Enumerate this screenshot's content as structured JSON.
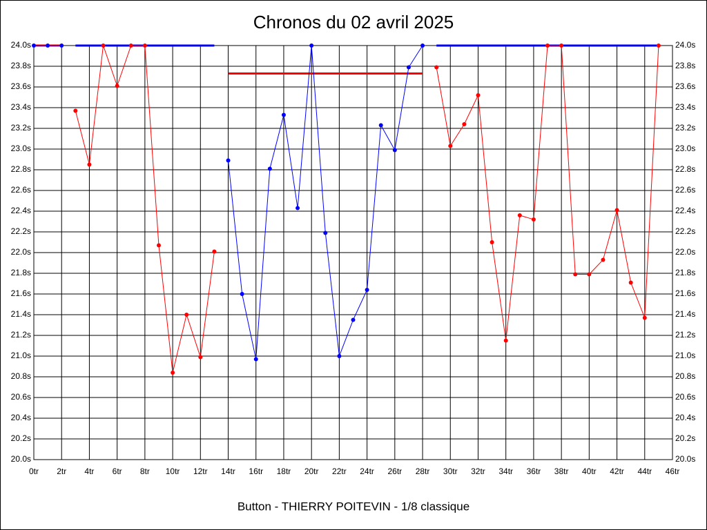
{
  "chart_data": {
    "type": "line",
    "title": "Chronos du 02 avril 2025",
    "x_label": "Button - THIERRY POITEVIN - 1/8 classique",
    "x": [
      0,
      1,
      2,
      3,
      4,
      5,
      6,
      7,
      8,
      9,
      10,
      11,
      12,
      13,
      14,
      15,
      16,
      17,
      18,
      19,
      20,
      21,
      22,
      23,
      24,
      25,
      26,
      27,
      28,
      29,
      30,
      31,
      32,
      33,
      34,
      35,
      36,
      37,
      38,
      39,
      40,
      41,
      42,
      43,
      44,
      45
    ],
    "series": [
      {
        "color": "#0000ff",
        "values": [
          24.0,
          24.0,
          24.0,
          null,
          null,
          null,
          null,
          null,
          null,
          null,
          null,
          null,
          null,
          null,
          22.89,
          21.6,
          20.97,
          22.81,
          23.33,
          22.43,
          24.0,
          22.19,
          21.0,
          21.35,
          21.64,
          23.23,
          22.99,
          23.79,
          24.0,
          null,
          null,
          null,
          null,
          null,
          null,
          null,
          null,
          null,
          null,
          null,
          null,
          null,
          null,
          null,
          null,
          null
        ]
      },
      {
        "color": "#ff0000",
        "values": [
          null,
          null,
          null,
          23.37,
          22.85,
          24.0,
          23.61,
          24.0,
          24.0,
          22.07,
          20.84,
          21.4,
          20.99,
          22.01,
          null,
          null,
          null,
          null,
          null,
          null,
          null,
          null,
          null,
          null,
          null,
          null,
          null,
          null,
          null,
          23.79,
          23.03,
          23.24,
          23.52,
          22.1,
          21.15,
          22.36,
          22.32,
          24.0,
          24.0,
          21.79,
          21.79,
          21.93,
          22.41,
          21.71,
          21.37,
          24.0
        ]
      }
    ],
    "levels": [
      {
        "color": "#ff0000",
        "value": 24.0,
        "from": 0,
        "to": 2
      },
      {
        "color": "#0000ff",
        "value": 24.0,
        "from": 3,
        "to": 13
      },
      {
        "color": "#ff0000",
        "value": 23.73,
        "from": 14,
        "to": 28
      },
      {
        "color": "#0000ff",
        "value": 24.0,
        "from": 29,
        "to": 45
      }
    ],
    "xlim": [
      0,
      46
    ],
    "xticks": [
      {
        "value": 0,
        "label": "0tr"
      },
      {
        "value": 2,
        "label": "2tr"
      },
      {
        "value": 4,
        "label": "4tr"
      },
      {
        "value": 6,
        "label": "6tr"
      },
      {
        "value": 8,
        "label": "8tr"
      },
      {
        "value": 10,
        "label": "10tr"
      },
      {
        "value": 12,
        "label": "12tr"
      },
      {
        "value": 14,
        "label": "14tr"
      },
      {
        "value": 16,
        "label": "16tr"
      },
      {
        "value": 18,
        "label": "18tr"
      },
      {
        "value": 20,
        "label": "20tr"
      },
      {
        "value": 22,
        "label": "22tr"
      },
      {
        "value": 24,
        "label": "24tr"
      },
      {
        "value": 26,
        "label": "26tr"
      },
      {
        "value": 28,
        "label": "28tr"
      },
      {
        "value": 30,
        "label": "30tr"
      },
      {
        "value": 32,
        "label": "32tr"
      },
      {
        "value": 34,
        "label": "34tr"
      },
      {
        "value": 36,
        "label": "36tr"
      },
      {
        "value": 38,
        "label": "38tr"
      },
      {
        "value": 40,
        "label": "40tr"
      },
      {
        "value": 42,
        "label": "42tr"
      },
      {
        "value": 44,
        "label": "44tr"
      },
      {
        "value": 46,
        "label": "46tr"
      }
    ],
    "ylim": [
      20.0,
      24.0
    ],
    "yticks": [
      {
        "value": 20.0,
        "label": "20.0s"
      },
      {
        "value": 20.2,
        "label": "20.2s"
      },
      {
        "value": 20.4,
        "label": "20.4s"
      },
      {
        "value": 20.6,
        "label": "20.6s"
      },
      {
        "value": 20.8,
        "label": "20.8s"
      },
      {
        "value": 21.0,
        "label": "21.0s"
      },
      {
        "value": 21.2,
        "label": "21.2s"
      },
      {
        "value": 21.4,
        "label": "21.4s"
      },
      {
        "value": 21.6,
        "label": "21.6s"
      },
      {
        "value": 21.8,
        "label": "21.8s"
      },
      {
        "value": 22.0,
        "label": "22.0s"
      },
      {
        "value": 22.2,
        "label": "22.2s"
      },
      {
        "value": 22.4,
        "label": "22.4s"
      },
      {
        "value": 22.6,
        "label": "22.6s"
      },
      {
        "value": 22.8,
        "label": "22.8s"
      },
      {
        "value": 23.0,
        "label": "23.0s"
      },
      {
        "value": 23.2,
        "label": "23.2s"
      },
      {
        "value": 23.4,
        "label": "23.4s"
      },
      {
        "value": 23.6,
        "label": "23.6s"
      },
      {
        "value": 23.8,
        "label": "23.8s"
      },
      {
        "value": 24.0,
        "label": "24.0s"
      }
    ],
    "grid": true
  }
}
